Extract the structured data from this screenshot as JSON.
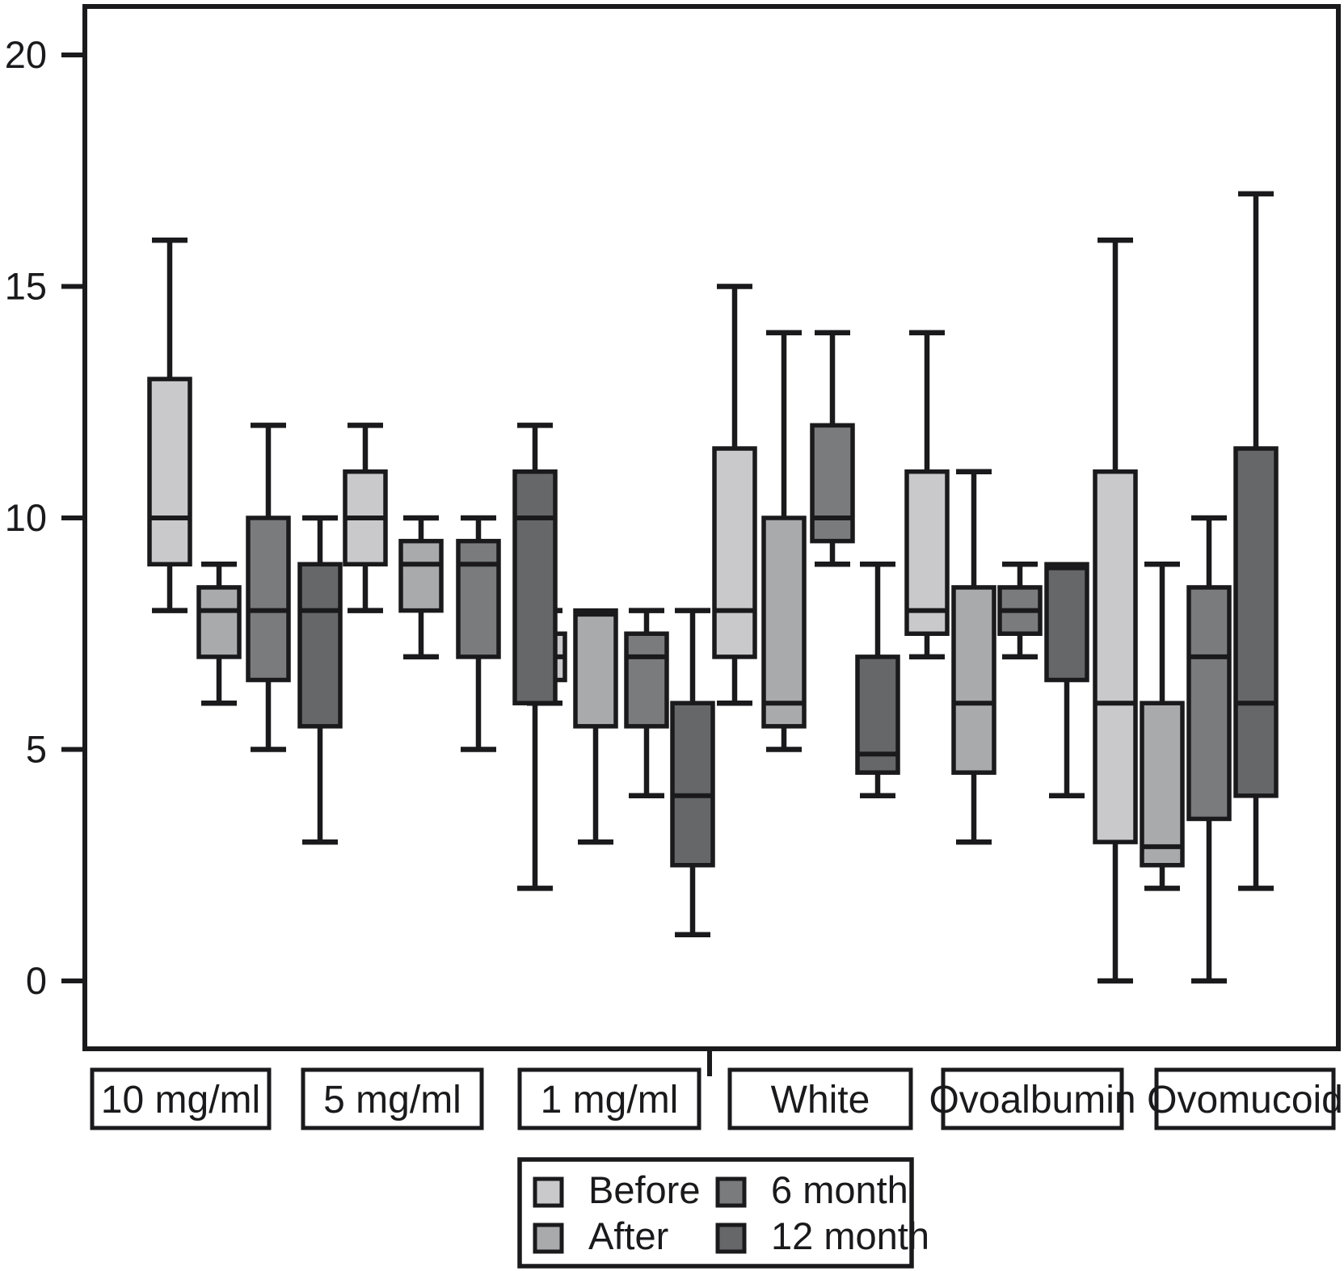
{
  "chart_data": {
    "type": "boxplot",
    "title": "",
    "xlabel": "",
    "ylabel": "",
    "grid": false,
    "ylim": [
      -1.5,
      21
    ],
    "yticks": [
      20,
      15,
      10,
      5,
      0
    ],
    "categories": [
      "10 mg/ml",
      "5 mg/ml",
      "1 mg/ml",
      "White",
      "Ovoalbumin",
      "Ovomucoid"
    ],
    "series": [
      {
        "name": "Before",
        "color": "#c9c9cb",
        "boxes": [
          {
            "low": 8,
            "q1": 9,
            "median": 10,
            "q3": 13,
            "high": 16
          },
          {
            "low": 8,
            "q1": 9,
            "median": 10,
            "q3": 11,
            "high": 12
          },
          {
            "low": 6,
            "q1": 6.5,
            "median": 7,
            "q3": 7.5,
            "high": 8
          },
          {
            "low": 6,
            "q1": 7,
            "median": 8,
            "q3": 11.5,
            "high": 15
          },
          {
            "low": 7,
            "q1": 7.5,
            "median": 8,
            "q3": 11,
            "high": 14
          },
          {
            "low": 0,
            "q1": 3,
            "median": 6,
            "q3": 11,
            "high": 16
          }
        ]
      },
      {
        "name": "After",
        "color": "#a9aaac",
        "boxes": [
          {
            "low": 6,
            "q1": 7,
            "median": 8,
            "q3": 8.5,
            "high": 9
          },
          {
            "low": 7,
            "q1": 8,
            "median": 9,
            "q3": 9.5,
            "high": 10
          },
          {
            "low": 3,
            "q1": 5.5,
            "median": 8,
            "q3": 8,
            "high": 8
          },
          {
            "low": 5,
            "q1": 5.5,
            "median": 6,
            "q3": 10,
            "high": 14
          },
          {
            "low": 3,
            "q1": 4.5,
            "median": 6,
            "q3": 8.5,
            "high": 11
          },
          {
            "low": 2,
            "q1": 2.5,
            "median": 2.9,
            "q3": 6,
            "high": 9
          }
        ]
      },
      {
        "name": "6 month",
        "color": "#797b7d",
        "boxes": [
          {
            "low": 5,
            "q1": 6.5,
            "median": 8,
            "q3": 10,
            "high": 12
          },
          {
            "low": 5,
            "q1": 7,
            "median": 9,
            "q3": 9.5,
            "high": 10
          },
          {
            "low": 4,
            "q1": 5.5,
            "median": 7,
            "q3": 7.5,
            "high": 8
          },
          {
            "low": 9,
            "q1": 9.5,
            "median": 10,
            "q3": 12,
            "high": 14
          },
          {
            "low": 7,
            "q1": 7.5,
            "median": 8,
            "q3": 8.5,
            "high": 9
          },
          {
            "low": 0,
            "q1": 3.5,
            "median": 7,
            "q3": 8.5,
            "high": 10
          }
        ]
      },
      {
        "name": "12 month",
        "color": "#656769",
        "boxes": [
          {
            "low": 3,
            "q1": 5.5,
            "median": 8,
            "q3": 9,
            "high": 10
          },
          {
            "low": 2,
            "q1": 6,
            "median": 10,
            "q3": 11,
            "high": 12
          },
          {
            "low": 1,
            "q1": 2.5,
            "median": 4,
            "q3": 6,
            "high": 8
          },
          {
            "low": 4,
            "q1": 4.5,
            "median": 4.9,
            "q3": 7,
            "high": 9
          },
          {
            "low": 4,
            "q1": 6.5,
            "median": 9,
            "q3": 9,
            "high": 9
          },
          {
            "low": 2,
            "q1": 4,
            "median": 6,
            "q3": 11.5,
            "high": 17
          }
        ]
      }
    ],
    "legend": {
      "position": "bottom",
      "items": [
        "Before",
        "After",
        "6 month",
        "12 month"
      ]
    },
    "line_color": "#1a1a1c",
    "background_color": "#ffffff"
  }
}
